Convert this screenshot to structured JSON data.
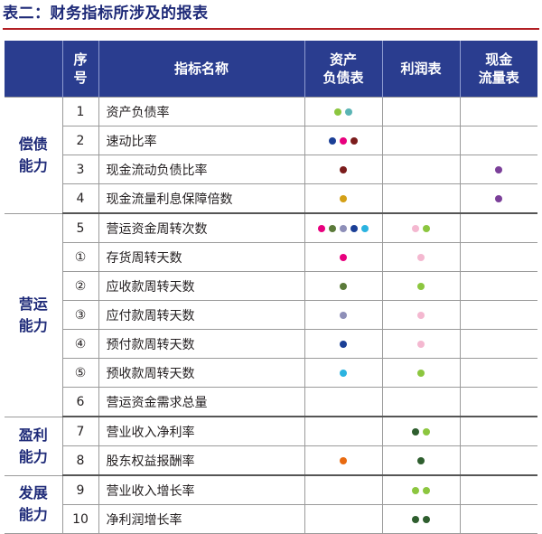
{
  "title": "表二：财务指标所涉及的报表",
  "headers": {
    "seq": [
      "序",
      "号"
    ],
    "indicator": "指标名称",
    "balance_sheet": [
      "资产",
      "负债表"
    ],
    "profit_statement": "利润表",
    "cash_flow": [
      "现金",
      "流量表"
    ]
  },
  "colors": {
    "header_bg": "#2a3d8f",
    "title_text": "#1e2a78",
    "title_rule": "#b21f24"
  },
  "groups": [
    {
      "label": [
        "偿债",
        "能力"
      ],
      "rows": [
        {
          "seq": "1",
          "name": "资产负债率",
          "bs": [
            "#8cc63f",
            "#5ab4b4"
          ],
          "pl": [],
          "cf": []
        },
        {
          "seq": "2",
          "name": "速动比率",
          "bs": [
            "#1b3f96",
            "#e8007e",
            "#7b1c1c"
          ],
          "pl": [],
          "cf": []
        },
        {
          "seq": "3",
          "name": "现金流动负债比率",
          "bs": [
            "#7b1c1c"
          ],
          "pl": [],
          "cf": [
            "#7b3f99"
          ]
        },
        {
          "seq": "4",
          "name": "现金流量利息保障倍数",
          "bs": [
            "#d4a017"
          ],
          "pl": [],
          "cf": [
            "#7b3f99"
          ]
        }
      ]
    },
    {
      "label": [
        "营运",
        "能力"
      ],
      "rows": [
        {
          "seq": "5",
          "name": "营运资金周转次数",
          "bs": [
            "#e8007e",
            "#5b7a3a",
            "#8e8fb8",
            "#1b3f96",
            "#2bb3e0"
          ],
          "pl": [
            "#f4b8d0",
            "#8cc63f"
          ],
          "cf": []
        },
        {
          "seq": "①",
          "name": "存货周转天数",
          "bs": [
            "#e8007e"
          ],
          "pl": [
            "#f4b8d0"
          ],
          "cf": []
        },
        {
          "seq": "②",
          "name": "应收款周转天数",
          "bs": [
            "#5b7a3a"
          ],
          "pl": [
            "#8cc63f"
          ],
          "cf": []
        },
        {
          "seq": "③",
          "name": "应付款周转天数",
          "bs": [
            "#8e8fb8"
          ],
          "pl": [
            "#f4b8d0"
          ],
          "cf": []
        },
        {
          "seq": "④",
          "name": "预付款周转天数",
          "bs": [
            "#1b3f96"
          ],
          "pl": [
            "#f4b8d0"
          ],
          "cf": []
        },
        {
          "seq": "⑤",
          "name": "预收款周转天数",
          "bs": [
            "#2bb3e0"
          ],
          "pl": [
            "#8cc63f"
          ],
          "cf": []
        },
        {
          "seq": "6",
          "name": "营运资金需求总量",
          "bs": [],
          "pl": [],
          "cf": []
        }
      ]
    },
    {
      "label": [
        "盈利",
        "能力"
      ],
      "rows": [
        {
          "seq": "7",
          "name": "营业收入净利率",
          "bs": [],
          "pl": [
            "#2e5e2e",
            "#8cc63f"
          ],
          "cf": []
        },
        {
          "seq": "8",
          "name": "股东权益报酬率",
          "bs": [
            "#e86a10"
          ],
          "pl": [
            "#2e5e2e"
          ],
          "cf": []
        }
      ]
    },
    {
      "label": [
        "发展",
        "能力"
      ],
      "rows": [
        {
          "seq": "9",
          "name": "营业收入增长率",
          "bs": [],
          "pl": [
            "#8cc63f",
            "#8cc63f"
          ],
          "cf": []
        },
        {
          "seq": "10",
          "name": "净利润增长率",
          "bs": [],
          "pl": [
            "#2e5e2e",
            "#2e5e2e"
          ],
          "cf": []
        }
      ]
    }
  ]
}
